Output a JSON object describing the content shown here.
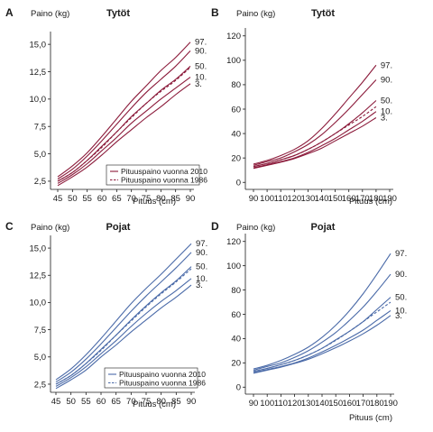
{
  "chart_data": [
    {
      "panel": "A",
      "type": "line",
      "title": "Tytöt",
      "ylabel": "Paino (kg)",
      "xlabel": "Pituus (cm)",
      "color": "#8b1a3a",
      "xlim": [
        45,
        90
      ],
      "ylim": [
        2.0,
        16.0
      ],
      "xticks": [
        "45",
        "50",
        "55",
        "60",
        "65",
        "70",
        "75",
        "80",
        "85",
        "90"
      ],
      "yticks": [
        "2,5",
        "5,0",
        "7,5",
        "10,0",
        "12,5",
        "15,0"
      ],
      "x": [
        45,
        50,
        55,
        60,
        65,
        70,
        75,
        80,
        85,
        90
      ],
      "series": [
        {
          "name": "Pituuspaino vuonna 2010",
          "label": "97.",
          "style": "solid",
          "values": [
            2.9,
            3.9,
            5.1,
            6.6,
            8.2,
            9.8,
            11.2,
            12.6,
            13.8,
            15.2
          ]
        },
        {
          "name": "",
          "label": "90.",
          "style": "solid",
          "values": [
            2.7,
            3.6,
            4.8,
            6.2,
            7.7,
            9.2,
            10.6,
            11.8,
            13.0,
            14.4
          ]
        },
        {
          "name": "",
          "label": "50.",
          "style": "solid",
          "values": [
            2.5,
            3.3,
            4.4,
            5.7,
            7.0,
            8.4,
            9.6,
            10.8,
            11.8,
            13.0
          ]
        },
        {
          "name": "",
          "label": "10.",
          "style": "solid",
          "values": [
            2.3,
            3.1,
            4.1,
            5.3,
            6.5,
            7.8,
            8.9,
            10.0,
            11.0,
            12.0
          ]
        },
        {
          "name": "",
          "label": "3.",
          "style": "solid",
          "values": [
            2.1,
            2.9,
            3.8,
            4.9,
            6.1,
            7.2,
            8.3,
            9.3,
            10.4,
            11.4
          ]
        },
        {
          "name": "Pituuspaino vuonna 1986",
          "label": "",
          "style": "dashed",
          "values": [
            2.5,
            3.3,
            4.4,
            5.6,
            7.0,
            8.3,
            9.6,
            10.7,
            11.7,
            12.9
          ]
        }
      ],
      "legend": {
        "position": "bottom-right"
      }
    },
    {
      "panel": "B",
      "type": "line",
      "title": "Tytöt",
      "ylabel": "Paino (kg)",
      "xlabel": "Pituus (cm)",
      "color": "#8b1a3a",
      "xlim": [
        90,
        190
      ],
      "ylim": [
        -5,
        125
      ],
      "xticks": [
        "90",
        "100",
        "110",
        "120",
        "130",
        "140",
        "150",
        "160",
        "170",
        "180",
        "190"
      ],
      "yticks": [
        "0",
        "20",
        "40",
        "60",
        "80",
        "100",
        "120"
      ],
      "x": [
        90,
        100,
        110,
        120,
        130,
        140,
        150,
        160,
        170,
        180
      ],
      "series": [
        {
          "name": "",
          "label": "97.",
          "style": "solid",
          "values": [
            15,
            18,
            22,
            27,
            34,
            44,
            56,
            69,
            82,
            96
          ]
        },
        {
          "name": "",
          "label": "90.",
          "style": "solid",
          "values": [
            14,
            17,
            20,
            25,
            31,
            39,
            49,
            60,
            72,
            84
          ]
        },
        {
          "name": "",
          "label": "50.",
          "style": "solid",
          "values": [
            13,
            15.5,
            18.5,
            22,
            27,
            33,
            40,
            48,
            57,
            67
          ]
        },
        {
          "name": "",
          "label": "10.",
          "style": "solid",
          "values": [
            12,
            14.5,
            17,
            20,
            24.5,
            30,
            36,
            43,
            50,
            58
          ]
        },
        {
          "name": "",
          "label": "3.",
          "style": "solid",
          "values": [
            11.5,
            14,
            16.5,
            19.5,
            23.5,
            28,
            34,
            40,
            46,
            53
          ]
        },
        {
          "name": "",
          "label": "",
          "style": "dashed",
          "values": [
            13,
            15.5,
            18.5,
            22,
            27,
            33,
            40,
            47,
            54,
            62
          ]
        }
      ]
    },
    {
      "panel": "C",
      "type": "line",
      "title": "Pojat",
      "ylabel": "Paino (kg)",
      "xlabel": "Pituus (cm)",
      "color": "#4a6aa8",
      "xlim": [
        45,
        90
      ],
      "ylim": [
        2.0,
        16.0
      ],
      "xticks": [
        "45",
        "50",
        "55",
        "60",
        "65",
        "70",
        "75",
        "80",
        "85",
        "90"
      ],
      "yticks": [
        "2,5",
        "5,0",
        "7,5",
        "10,0",
        "12,5",
        "15,0"
      ],
      "x": [
        45,
        50,
        55,
        60,
        65,
        70,
        75,
        80,
        85,
        90
      ],
      "series": [
        {
          "name": "Pituuspaino vuonna 2010",
          "label": "97.",
          "style": "solid",
          "values": [
            2.9,
            3.9,
            5.2,
            6.7,
            8.3,
            9.9,
            11.3,
            12.6,
            14.0,
            15.4
          ]
        },
        {
          "name": "",
          "label": "90.",
          "style": "solid",
          "values": [
            2.7,
            3.6,
            4.8,
            6.2,
            7.7,
            9.2,
            10.6,
            11.9,
            13.2,
            14.6
          ]
        },
        {
          "name": "",
          "label": "50.",
          "style": "solid",
          "values": [
            2.5,
            3.3,
            4.4,
            5.7,
            7.0,
            8.4,
            9.7,
            10.9,
            12.0,
            13.3
          ]
        },
        {
          "name": "",
          "label": "10.",
          "style": "solid",
          "values": [
            2.3,
            3.1,
            4.1,
            5.3,
            6.5,
            7.8,
            9.0,
            10.1,
            11.1,
            12.2
          ]
        },
        {
          "name": "",
          "label": "3.",
          "style": "solid",
          "values": [
            2.1,
            2.9,
            3.8,
            5.0,
            6.1,
            7.3,
            8.4,
            9.5,
            10.5,
            11.6
          ]
        },
        {
          "name": "Pituuspaino vuonna 1986",
          "label": "",
          "style": "dashed",
          "values": [
            2.5,
            3.3,
            4.4,
            5.6,
            7.0,
            8.3,
            9.6,
            10.8,
            11.9,
            13.1
          ]
        }
      ],
      "legend": {
        "position": "bottom-right"
      }
    },
    {
      "panel": "D",
      "type": "line",
      "title": "Pojat",
      "ylabel": "Paino (kg)",
      "xlabel": "Pituus (cm)",
      "color": "#4a6aa8",
      "xlim": [
        90,
        190
      ],
      "ylim": [
        -5,
        125
      ],
      "xticks": [
        "90",
        "100",
        "110",
        "120",
        "130",
        "140",
        "150",
        "160",
        "170",
        "180",
        "190"
      ],
      "yticks": [
        "0",
        "20",
        "40",
        "60",
        "80",
        "100",
        "120"
      ],
      "x": [
        90,
        100,
        110,
        120,
        130,
        140,
        150,
        160,
        170,
        180,
        190
      ],
      "series": [
        {
          "name": "",
          "label": "97.",
          "style": "solid",
          "values": [
            15,
            18,
            22,
            27,
            33,
            41,
            51,
            63,
            77,
            93,
            110
          ]
        },
        {
          "name": "",
          "label": "90.",
          "style": "solid",
          "values": [
            14,
            17,
            20,
            24.5,
            30,
            37,
            45,
            55,
            66,
            79,
            93
          ]
        },
        {
          "name": "",
          "label": "50.",
          "style": "solid",
          "values": [
            13,
            15.5,
            18.5,
            22,
            26.5,
            32,
            39,
            46,
            54,
            64,
            74
          ]
        },
        {
          "name": "",
          "label": "10.",
          "style": "solid",
          "values": [
            12,
            14.5,
            17,
            20,
            24,
            29,
            34.5,
            40.5,
            47,
            55,
            63
          ]
        },
        {
          "name": "",
          "label": "3.",
          "style": "solid",
          "values": [
            11.5,
            14,
            16.5,
            19.5,
            23,
            27.5,
            32.5,
            38,
            44,
            51,
            59
          ]
        },
        {
          "name": "",
          "label": "",
          "style": "dashed",
          "values": [
            13,
            15.5,
            18.5,
            22,
            26.5,
            32,
            38.5,
            46,
            54,
            62,
            70
          ]
        }
      ]
    }
  ]
}
